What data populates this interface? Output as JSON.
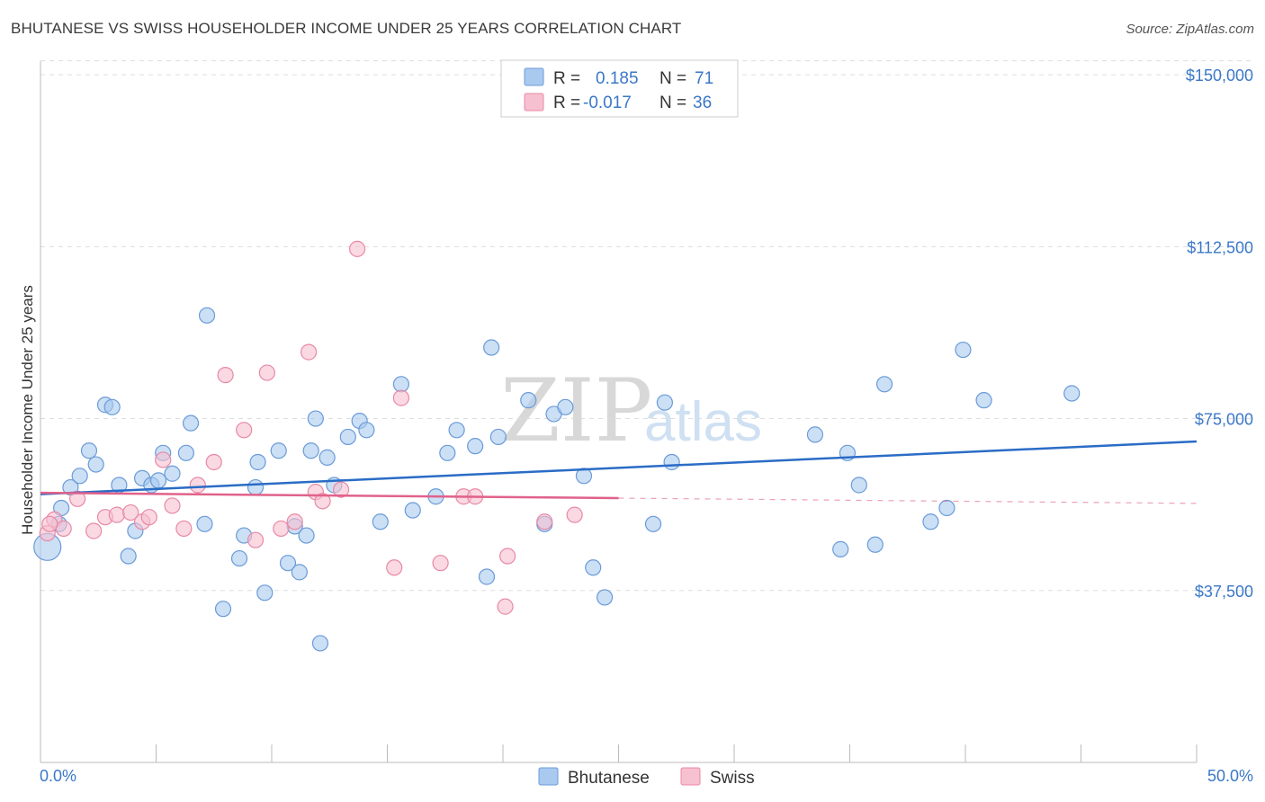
{
  "header": {
    "title": "BHUTANESE VS SWISS HOUSEHOLDER INCOME UNDER 25 YEARS CORRELATION CHART",
    "source": "Source: ZipAtlas.com"
  },
  "legend": {
    "rows": [
      {
        "r_label": "R =",
        "r_value": "0.185",
        "n_label": "N =",
        "n_value": "71"
      },
      {
        "r_label": "R =",
        "r_value": "-0.017",
        "n_label": "N =",
        "n_value": "36"
      }
    ],
    "bottom": [
      "Bhutanese",
      "Swiss"
    ]
  },
  "watermark": {
    "zip": "ZIP",
    "atlas": "atlas"
  },
  "colors": {
    "bhutanese_fill": "#a9c9ef",
    "bhutanese_stroke": "#6a9bd8",
    "bhutanese_line": "#2a6cc6",
    "swiss_fill": "#f6c0d0",
    "swiss_stroke": "#e889a6",
    "swiss_line": "#e0628a",
    "tick_text": "#3b78c8",
    "grid": "#dddddd"
  },
  "chart_data": {
    "type": "scatter",
    "title": "BHUTANESE VS SWISS HOUSEHOLDER INCOME UNDER 25 YEARS CORRELATION CHART",
    "ylabel": "Householder Income Under 25 years",
    "xlim": [
      0,
      50
    ],
    "ylim": [
      0,
      155000
    ],
    "x_tick_labels": [
      "0.0%",
      "50.0%"
    ],
    "y_ticks": [
      37500,
      75000,
      112500,
      150000
    ],
    "y_tick_labels": [
      "$37,500",
      "$75,000",
      "$112,500",
      "$150,000"
    ],
    "grid": true,
    "legend_position": "top-center",
    "series": [
      {
        "name": "Bhutanese",
        "r": 0.185,
        "n": 71,
        "trend": {
          "x": [
            0,
            50
          ],
          "y": [
            58500,
            70000
          ],
          "dashed_from": null
        },
        "points": [
          [
            0.3,
            47000
          ],
          [
            0.8,
            52000
          ],
          [
            0.9,
            55500
          ],
          [
            1.3,
            60000
          ],
          [
            1.7,
            62500
          ],
          [
            2.1,
            68000
          ],
          [
            2.4,
            65000
          ],
          [
            2.8,
            78000
          ],
          [
            3.1,
            77500
          ],
          [
            3.4,
            60500
          ],
          [
            3.8,
            45000
          ],
          [
            4.1,
            50500
          ],
          [
            4.4,
            62000
          ],
          [
            4.8,
            60500
          ],
          [
            5.1,
            61500
          ],
          [
            5.3,
            67500
          ],
          [
            5.7,
            63000
          ],
          [
            6.3,
            67500
          ],
          [
            6.5,
            74000
          ],
          [
            7.1,
            52000
          ],
          [
            7.2,
            97500
          ],
          [
            7.9,
            33500
          ],
          [
            8.6,
            44500
          ],
          [
            8.8,
            49500
          ],
          [
            9.3,
            60000
          ],
          [
            9.4,
            65500
          ],
          [
            9.7,
            37000
          ],
          [
            10.3,
            68000
          ],
          [
            10.7,
            43500
          ],
          [
            11.0,
            51500
          ],
          [
            11.2,
            41500
          ],
          [
            11.5,
            49500
          ],
          [
            11.7,
            68000
          ],
          [
            11.9,
            75000
          ],
          [
            12.1,
            26000
          ],
          [
            12.4,
            66500
          ],
          [
            12.7,
            60500
          ],
          [
            13.3,
            71000
          ],
          [
            13.8,
            74500
          ],
          [
            14.1,
            72500
          ],
          [
            14.7,
            52500
          ],
          [
            15.6,
            82500
          ],
          [
            16.1,
            55000
          ],
          [
            17.1,
            58000
          ],
          [
            17.6,
            67500
          ],
          [
            18.0,
            72500
          ],
          [
            18.8,
            69000
          ],
          [
            19.3,
            40500
          ],
          [
            19.5,
            90500
          ],
          [
            19.8,
            71000
          ],
          [
            21.1,
            79000
          ],
          [
            21.8,
            52000
          ],
          [
            22.2,
            76000
          ],
          [
            22.7,
            77500
          ],
          [
            23.5,
            62500
          ],
          [
            23.9,
            42500
          ],
          [
            24.4,
            36000
          ],
          [
            26.5,
            52000
          ],
          [
            27.0,
            78500
          ],
          [
            27.3,
            65500
          ],
          [
            33.5,
            71500
          ],
          [
            34.6,
            46500
          ],
          [
            34.9,
            67500
          ],
          [
            35.4,
            60500
          ],
          [
            36.1,
            47500
          ],
          [
            36.5,
            82500
          ],
          [
            38.5,
            52500
          ],
          [
            39.2,
            55500
          ],
          [
            39.9,
            90000
          ],
          [
            40.8,
            79000
          ],
          [
            44.6,
            80500
          ]
        ]
      },
      {
        "name": "Swiss",
        "r": -0.017,
        "n": 36,
        "trend": {
          "x": [
            0,
            50
          ],
          "y": [
            58800,
            56500
          ],
          "dashed_from": 25
        },
        "points": [
          [
            0.3,
            50000
          ],
          [
            0.6,
            53000
          ],
          [
            1.0,
            51000
          ],
          [
            1.6,
            57500
          ],
          [
            2.3,
            50500
          ],
          [
            2.8,
            53500
          ],
          [
            3.3,
            54000
          ],
          [
            3.9,
            54500
          ],
          [
            4.4,
            52500
          ],
          [
            4.7,
            53500
          ],
          [
            5.3,
            66000
          ],
          [
            5.7,
            56000
          ],
          [
            6.2,
            51000
          ],
          [
            6.8,
            60500
          ],
          [
            7.5,
            65500
          ],
          [
            8.0,
            84500
          ],
          [
            8.8,
            72500
          ],
          [
            9.3,
            48500
          ],
          [
            9.8,
            85000
          ],
          [
            10.4,
            51000
          ],
          [
            11.0,
            52500
          ],
          [
            11.6,
            89500
          ],
          [
            11.9,
            59000
          ],
          [
            12.2,
            57000
          ],
          [
            13.0,
            59500
          ],
          [
            13.7,
            112000
          ],
          [
            15.3,
            42500
          ],
          [
            15.6,
            79500
          ],
          [
            17.3,
            43500
          ],
          [
            18.3,
            58000
          ],
          [
            18.8,
            58000
          ],
          [
            20.1,
            34000
          ],
          [
            20.2,
            45000
          ],
          [
            21.8,
            52500
          ],
          [
            23.1,
            54000
          ],
          [
            0.4,
            52000
          ]
        ]
      }
    ]
  }
}
